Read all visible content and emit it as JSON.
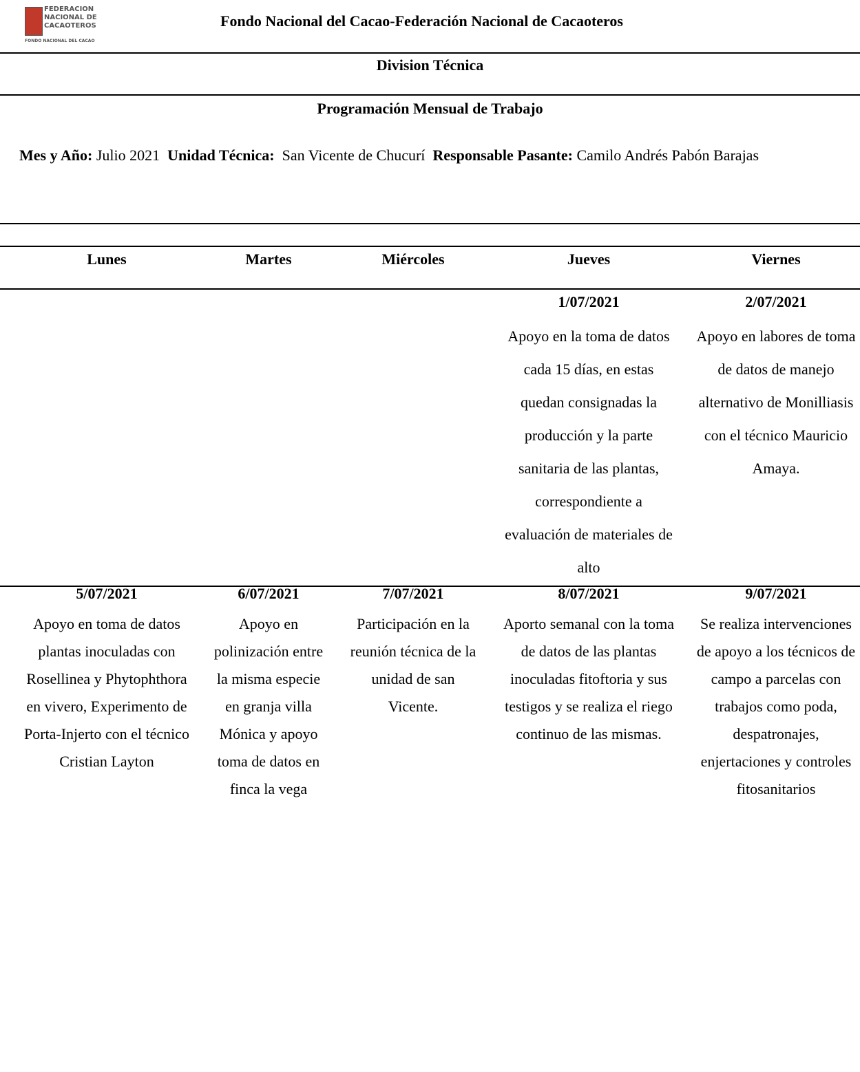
{
  "header": {
    "logo_lines": [
      "FEDERACION",
      "NACIONAL DE",
      "CACAOTEROS",
      "FONDO NACIONAL DEL CACAO"
    ],
    "title": "Fondo Nacional del Cacao-Federación Nacional de Cacaoteros",
    "division": "Division Técnica",
    "program": "Programación Mensual de Trabajo"
  },
  "info": {
    "month_label": "Mes y Año:",
    "month": "Julio 2021",
    "unit_label": "Unidad Técnica:",
    "unit": "San Vicente de Chucurí",
    "resp_label": "Responsable Pasante:",
    "resp": "Camilo Andrés Pabón Barajas"
  },
  "table": {
    "columns": [
      "Lunes",
      "Martes",
      "Miércoles",
      "Jueves",
      "Viernes"
    ],
    "rows": [
      [
        null,
        null,
        null,
        {
          "date": "1/07/2021",
          "text": "Apoyo en la toma de datos cada 15 días, en estas quedan consignadas la producción y la parte sanitaria de las plantas, correspondiente a evaluación de materiales de alto"
        },
        {
          "date": "2/07/2021",
          "text": "Apoyo en labores de toma de datos de manejo alternativo de Monilliasis con el técnico Mauricio Amaya."
        }
      ],
      [
        {
          "date": "5/07/2021",
          "text": "Apoyo en toma de datos plantas inoculadas con Rosellinea y Phytophthora en vivero, Experimento de Porta-Injerto con el técnico Cristian Layton"
        },
        {
          "date": "6/07/2021",
          "text": "Apoyo en polinización entre la misma especie en granja villa Mónica y apoyo toma de datos en finca la vega"
        },
        {
          "date": "7/07/2021",
          "text": "Participación en la reunión técnica de la unidad de san Vicente."
        },
        {
          "date": "8/07/2021",
          "text": "Aporto semanal con la toma de datos de las plantas inoculadas fitoftoria y sus testigos y se realiza el riego continuo de las mismas."
        },
        {
          "date": "9/07/2021",
          "text": "Se realiza intervenciones de apoyo a los técnicos de campo a parcelas con trabajos como poda, despatronajes, enjertaciones y controles fitosanitarios"
        }
      ]
    ]
  }
}
